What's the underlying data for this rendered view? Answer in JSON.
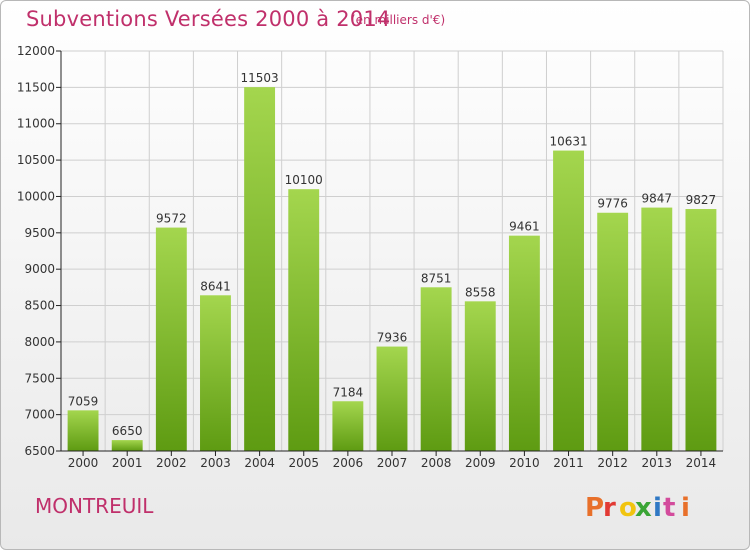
{
  "header": {
    "title": "Subventions Versées 2000 à 2014",
    "subtitle": "(en milliers d'€)"
  },
  "footer": {
    "commune": "MONTREUIL",
    "logo_text": "Proxiti"
  },
  "colors": {
    "bar_light": "#a4d64e",
    "bar_dark": "#5e9b12",
    "title": "#c0306b",
    "grid": "#cfcfcf",
    "axis": "#222222",
    "logo": [
      "#e8702a",
      "#e23a34",
      "#f1c40f",
      "#3aa535",
      "#2f78c4",
      "#d34b9c"
    ]
  },
  "chart_data": {
    "type": "bar",
    "title": "Subventions Versées 2000 à 2014",
    "subtitle": "(en milliers d'€)",
    "categories": [
      "2000",
      "2001",
      "2002",
      "2003",
      "2004",
      "2005",
      "2006",
      "2007",
      "2008",
      "2009",
      "2010",
      "2011",
      "2012",
      "2013",
      "2014"
    ],
    "values": [
      7059,
      6650,
      9572,
      8641,
      11503,
      10100,
      7184,
      7936,
      8751,
      8558,
      9461,
      10631,
      9776,
      9847,
      9827
    ],
    "ylim": [
      6500,
      12000
    ],
    "yticks": [
      6500,
      7000,
      7500,
      8000,
      8500,
      9000,
      9500,
      10000,
      10500,
      11000,
      11500,
      12000
    ],
    "grid": true,
    "legend": "none"
  }
}
